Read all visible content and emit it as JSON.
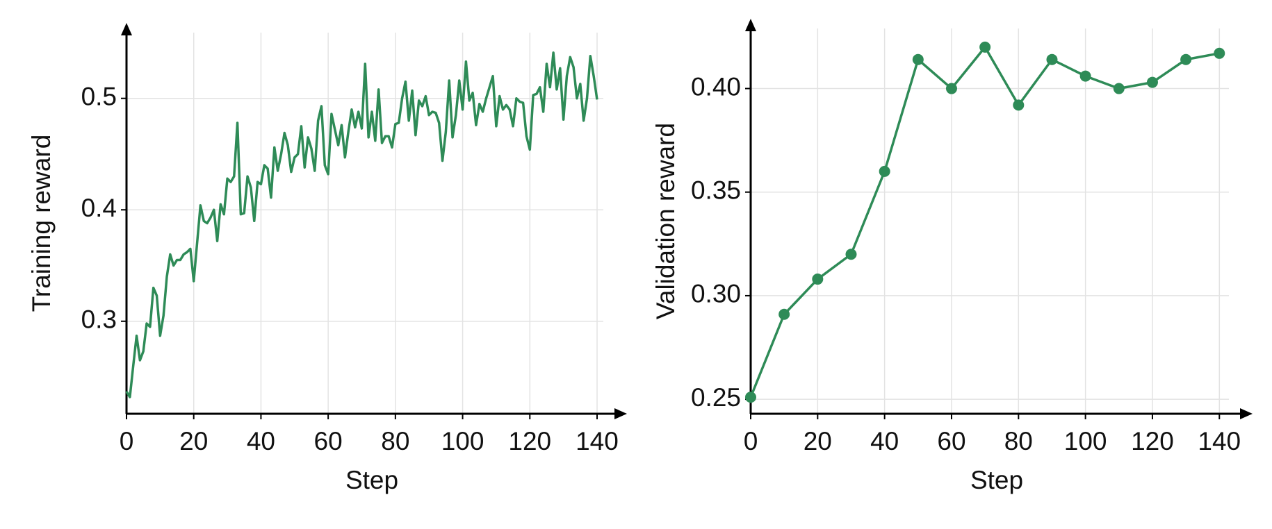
{
  "chart_data": [
    {
      "type": "line",
      "xlabel": "Step",
      "ylabel": "Training reward",
      "x": [
        0,
        1,
        2,
        3,
        4,
        5,
        6,
        7,
        8,
        9,
        10,
        11,
        12,
        13,
        14,
        15,
        16,
        17,
        18,
        19,
        20,
        21,
        22,
        23,
        24,
        25,
        26,
        27,
        28,
        29,
        30,
        31,
        32,
        33,
        34,
        35,
        36,
        37,
        38,
        39,
        40,
        41,
        42,
        43,
        44,
        45,
        46,
        47,
        48,
        49,
        50,
        51,
        52,
        53,
        54,
        55,
        56,
        57,
        58,
        59,
        60,
        61,
        62,
        63,
        64,
        65,
        66,
        67,
        68,
        69,
        70,
        71,
        72,
        73,
        74,
        75,
        76,
        77,
        78,
        79,
        80,
        81,
        82,
        83,
        84,
        85,
        86,
        87,
        88,
        89,
        90,
        91,
        92,
        93,
        94,
        95,
        96,
        97,
        98,
        99,
        100,
        101,
        102,
        103,
        104,
        105,
        106,
        107,
        108,
        109,
        110,
        111,
        112,
        113,
        114,
        115,
        116,
        117,
        118,
        119,
        120,
        121,
        122,
        123,
        124,
        125,
        126,
        127,
        128,
        129,
        130,
        131,
        132,
        133,
        134,
        135,
        136,
        137,
        138,
        139,
        140
      ],
      "series": [
        {
          "color": "#2e8b57",
          "values": [
            0.237,
            0.232,
            0.26,
            0.287,
            0.265,
            0.273,
            0.298,
            0.295,
            0.33,
            0.323,
            0.287,
            0.305,
            0.34,
            0.36,
            0.35,
            0.355,
            0.355,
            0.36,
            0.362,
            0.365,
            0.336,
            0.37,
            0.404,
            0.39,
            0.388,
            0.393,
            0.4,
            0.372,
            0.405,
            0.396,
            0.428,
            0.425,
            0.43,
            0.478,
            0.396,
            0.397,
            0.43,
            0.42,
            0.39,
            0.425,
            0.423,
            0.44,
            0.437,
            0.411,
            0.456,
            0.435,
            0.45,
            0.469,
            0.458,
            0.434,
            0.447,
            0.45,
            0.475,
            0.438,
            0.465,
            0.455,
            0.435,
            0.48,
            0.493,
            0.44,
            0.432,
            0.486,
            0.472,
            0.458,
            0.476,
            0.447,
            0.47,
            0.49,
            0.474,
            0.488,
            0.473,
            0.531,
            0.465,
            0.488,
            0.462,
            0.508,
            0.46,
            0.466,
            0.466,
            0.456,
            0.477,
            0.478,
            0.5,
            0.515,
            0.48,
            0.507,
            0.467,
            0.498,
            0.493,
            0.502,
            0.485,
            0.488,
            0.487,
            0.478,
            0.444,
            0.47,
            0.516,
            0.465,
            0.485,
            0.516,
            0.49,
            0.533,
            0.498,
            0.505,
            0.476,
            0.495,
            0.488,
            0.5,
            0.51,
            0.52,
            0.475,
            0.502,
            0.49,
            0.494,
            0.49,
            0.475,
            0.5,
            0.497,
            0.496,
            0.466,
            0.454,
            0.503,
            0.504,
            0.51,
            0.488,
            0.531,
            0.51,
            0.541,
            0.508,
            0.527,
            0.481,
            0.52,
            0.537,
            0.528,
            0.5,
            0.513,
            0.48,
            0.5,
            0.538,
            0.52,
            0.499
          ]
        }
      ],
      "xlim": [
        0,
        146
      ],
      "ylim": [
        0.217,
        0.559
      ],
      "xticks": [
        0,
        20,
        40,
        60,
        80,
        100,
        120,
        140
      ],
      "yticks": [
        0.3,
        0.4,
        0.5
      ],
      "grid": true,
      "markers": false
    },
    {
      "type": "line",
      "xlabel": "Step",
      "ylabel": "Validation reward",
      "x": [
        0,
        10,
        20,
        30,
        40,
        50,
        60,
        70,
        80,
        90,
        100,
        110,
        120,
        130,
        140
      ],
      "series": [
        {
          "color": "#2e8b57",
          "values": [
            0.251,
            0.291,
            0.308,
            0.32,
            0.36,
            0.414,
            0.4,
            0.42,
            0.392,
            0.414,
            0.406,
            0.4,
            0.403,
            0.414,
            0.417
          ]
        }
      ],
      "xlim": [
        0,
        147
      ],
      "ylim": [
        0.243,
        0.429
      ],
      "xticks": [
        0,
        20,
        40,
        60,
        80,
        100,
        120,
        140
      ],
      "yticks": [
        0.25,
        {
          "value": 0.3,
          "label": "0.30"
        },
        0.35,
        {
          "value": 0.4,
          "label": "0.40"
        }
      ],
      "grid": true,
      "markers": true
    }
  ]
}
